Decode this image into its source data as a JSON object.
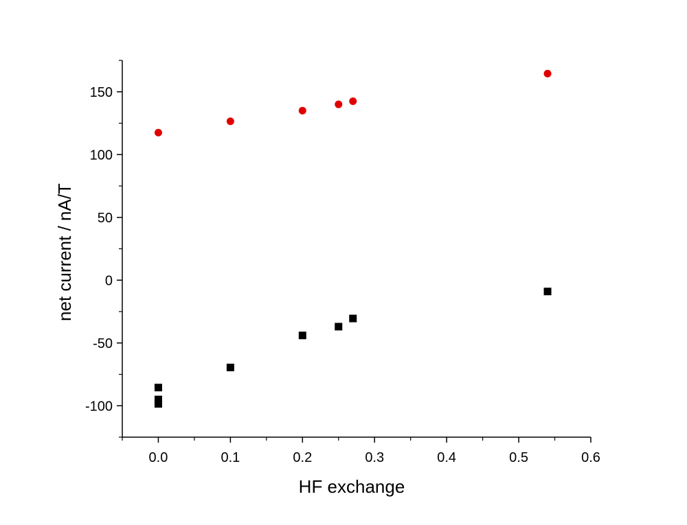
{
  "chart_data": {
    "type": "scatter",
    "title": "",
    "xlabel": "HF exchange",
    "ylabel": "net current / nA/T",
    "xlim": [
      -0.05,
      0.6
    ],
    "ylim": [
      -125,
      175
    ],
    "xticks": [
      0.0,
      0.1,
      0.2,
      0.3,
      0.4,
      0.5,
      0.6
    ],
    "xtick_labels": [
      "0.0",
      "0.1",
      "0.2",
      "0.3",
      "0.4",
      "0.5",
      "0.6"
    ],
    "yticks": [
      -100,
      -50,
      0,
      50,
      100,
      150
    ],
    "ytick_labels": [
      "-100",
      "-50",
      "0",
      "50",
      "100",
      "150"
    ],
    "grid": false,
    "legend": "none",
    "series": [
      {
        "marker": "circle",
        "color": "#e00000",
        "points": [
          {
            "x": 0.0,
            "y": 117.5
          },
          {
            "x": 0.1,
            "y": 126.5
          },
          {
            "x": 0.2,
            "y": 135
          },
          {
            "x": 0.25,
            "y": 140
          },
          {
            "x": 0.27,
            "y": 142.5
          },
          {
            "x": 0.54,
            "y": 164.5
          }
        ]
      },
      {
        "marker": "square",
        "color": "#000000",
        "points": [
          {
            "x": 0.0,
            "y": -85.5
          },
          {
            "x": 0.0,
            "y": -95
          },
          {
            "x": 0.0,
            "y": -98.5
          },
          {
            "x": 0.1,
            "y": -69.5
          },
          {
            "x": 0.2,
            "y": -44
          },
          {
            "x": 0.25,
            "y": -37
          },
          {
            "x": 0.27,
            "y": -30.5
          },
          {
            "x": 0.54,
            "y": -9
          }
        ]
      }
    ]
  }
}
